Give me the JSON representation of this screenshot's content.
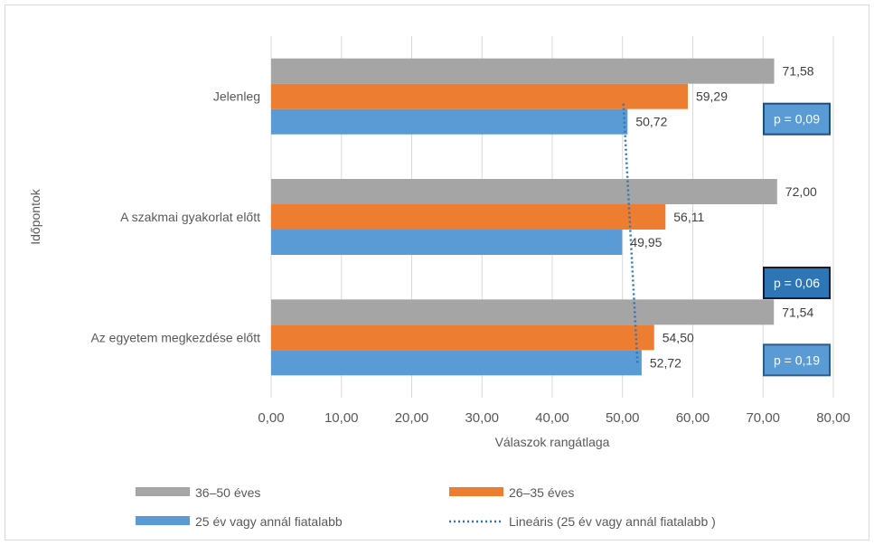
{
  "chart_data": {
    "type": "bar",
    "orientation": "horizontal",
    "categories": [
      "Az egyetem megkezdése előtt",
      "A szakmai gyakorlat előtt",
      "Jelenleg"
    ],
    "series": [
      {
        "name": "25 év vagy annál  fiatalabb",
        "values": [
          52.72,
          49.95,
          50.72
        ],
        "labels": [
          "52,72",
          "49,95",
          "50,72"
        ],
        "color": "#5b9bd5"
      },
      {
        "name": "26–35 éves",
        "values": [
          54.5,
          56.11,
          59.29
        ],
        "labels": [
          "54,50",
          "56,11",
          "59,29"
        ],
        "color": "#ed7d31"
      },
      {
        "name": "36–50 éves",
        "values": [
          71.54,
          72.0,
          71.58
        ],
        "labels": [
          "71,54",
          "72,00",
          "71,58"
        ],
        "color": "#a5a5a5"
      }
    ],
    "trendline": {
      "name": "Lineáris (25 év vagy annál fiatalabb )",
      "series": "25 év vagy annál  fiatalabb",
      "type": "linear",
      "color": "#2e75b6"
    },
    "xlabel": "Válaszok rangátlaga",
    "ylabel": "Időpontok",
    "xlim": [
      0,
      80
    ],
    "xticks": [
      0,
      10,
      20,
      30,
      40,
      50,
      60,
      70,
      80
    ],
    "xtick_labels": [
      "0,00",
      "10,00",
      "20,00",
      "30,00",
      "40,00",
      "50,00",
      "60,00",
      "70,00",
      "80,00"
    ],
    "grid": true,
    "legend_position": "bottom",
    "legend_order": [
      "36–50 éves",
      "26–35 éves",
      "25 év vagy annál  fiatalabb",
      "Lineáris (25 év vagy annál fiatalabb )"
    ],
    "annotations": [
      {
        "category": "Jelenleg",
        "text": "p = 0,09",
        "fill": "#5b9bd5",
        "border": "#1f4e79"
      },
      {
        "category": "A szakmai gyakorlat előtt",
        "text": "p = 0,06",
        "fill": "#2e75b6",
        "border": "#1a1a2e"
      },
      {
        "category": "Az egyetem megkezdése előtt",
        "text": "p = 0,19",
        "fill": "#5b9bd5",
        "border": "#2e5c8a"
      }
    ]
  }
}
